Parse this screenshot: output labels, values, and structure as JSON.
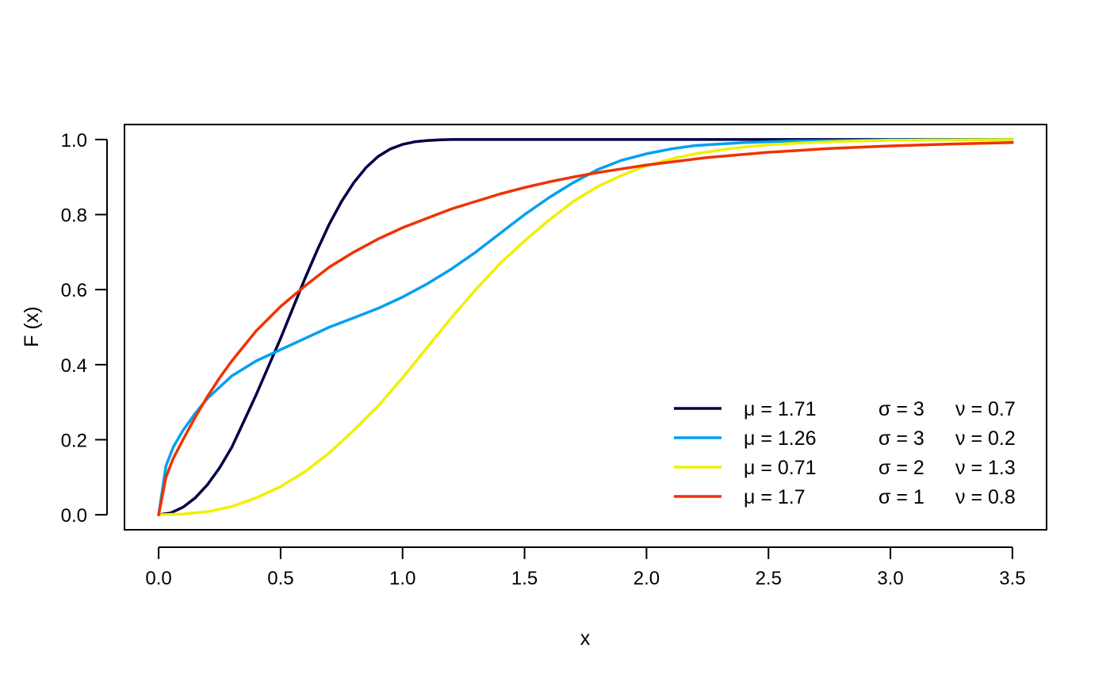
{
  "chart_data": {
    "type": "line",
    "title": "",
    "xlabel": "x",
    "ylabel": "F (x)",
    "xlim": [
      -0.14,
      3.64
    ],
    "ylim": [
      -0.04,
      1.04
    ],
    "xticks": [
      "0.0",
      "0.5",
      "1.0",
      "1.5",
      "2.0",
      "2.5",
      "3.0",
      "3.5"
    ],
    "yticks": [
      "0.0",
      "0.2",
      "0.4",
      "0.6",
      "0.8",
      "1.0"
    ],
    "grid": false,
    "legend_position": "bottom-right",
    "series": [
      {
        "legend": {
          "mu": "μ = 1.71",
          "sigma": "σ = 3",
          "nu": "ν = 0.7"
        },
        "color": "#000046",
        "x": [
          0.0,
          0.05,
          0.1,
          0.15,
          0.2,
          0.25,
          0.3,
          0.35,
          0.4,
          0.45,
          0.5,
          0.55,
          0.6,
          0.65,
          0.7,
          0.75,
          0.8,
          0.85,
          0.9,
          0.95,
          1.0,
          1.05,
          1.1,
          1.15,
          1.2,
          1.3,
          1.4,
          1.5,
          2.0,
          2.5,
          3.0,
          3.5
        ],
        "y": [
          0.0,
          0.005,
          0.02,
          0.045,
          0.08,
          0.125,
          0.18,
          0.25,
          0.32,
          0.395,
          0.47,
          0.55,
          0.63,
          0.705,
          0.775,
          0.835,
          0.885,
          0.925,
          0.955,
          0.975,
          0.987,
          0.994,
          0.997,
          0.999,
          1.0,
          1.0,
          1.0,
          1.0,
          1.0,
          1.0,
          1.0,
          1.0
        ]
      },
      {
        "legend": {
          "mu": "μ = 1.26",
          "sigma": "σ = 3",
          "nu": "ν = 0.2"
        },
        "color": "#00A0F0",
        "x": [
          0.0,
          0.03,
          0.06,
          0.1,
          0.15,
          0.2,
          0.3,
          0.4,
          0.5,
          0.6,
          0.7,
          0.8,
          0.9,
          1.0,
          1.1,
          1.2,
          1.3,
          1.4,
          1.5,
          1.6,
          1.7,
          1.8,
          1.9,
          2.0,
          2.1,
          2.2,
          2.4,
          2.6,
          3.0,
          3.5
        ],
        "y": [
          0.0,
          0.13,
          0.18,
          0.225,
          0.27,
          0.31,
          0.37,
          0.41,
          0.44,
          0.47,
          0.5,
          0.525,
          0.55,
          0.58,
          0.615,
          0.655,
          0.7,
          0.75,
          0.8,
          0.845,
          0.885,
          0.92,
          0.945,
          0.962,
          0.975,
          0.984,
          0.992,
          0.996,
          0.999,
          1.0
        ]
      },
      {
        "legend": {
          "mu": "μ = 0.71",
          "sigma": "σ = 2",
          "nu": "ν = 1.3"
        },
        "color": "#F0F000",
        "x": [
          0.0,
          0.1,
          0.2,
          0.3,
          0.4,
          0.5,
          0.6,
          0.7,
          0.8,
          0.9,
          1.0,
          1.1,
          1.2,
          1.3,
          1.4,
          1.5,
          1.6,
          1.7,
          1.8,
          1.9,
          2.0,
          2.1,
          2.2,
          2.3,
          2.4,
          2.5,
          2.6,
          2.8,
          3.0,
          3.5
        ],
        "y": [
          0.0,
          0.002,
          0.008,
          0.022,
          0.045,
          0.075,
          0.115,
          0.165,
          0.225,
          0.29,
          0.365,
          0.445,
          0.525,
          0.6,
          0.67,
          0.73,
          0.785,
          0.835,
          0.875,
          0.905,
          0.93,
          0.948,
          0.962,
          0.972,
          0.98,
          0.986,
          0.99,
          0.995,
          0.998,
          1.0
        ]
      },
      {
        "legend": {
          "mu": "μ = 1.7",
          "sigma": "σ = 1",
          "nu": "ν = 0.8"
        },
        "color": "#F03200",
        "x": [
          0.0,
          0.03,
          0.06,
          0.1,
          0.15,
          0.2,
          0.25,
          0.3,
          0.4,
          0.5,
          0.6,
          0.7,
          0.8,
          0.9,
          1.0,
          1.1,
          1.2,
          1.3,
          1.4,
          1.5,
          1.6,
          1.7,
          1.8,
          1.9,
          2.0,
          2.25,
          2.5,
          2.75,
          3.0,
          3.25,
          3.5
        ],
        "y": [
          0.0,
          0.1,
          0.15,
          0.2,
          0.26,
          0.315,
          0.365,
          0.41,
          0.49,
          0.555,
          0.61,
          0.66,
          0.7,
          0.735,
          0.765,
          0.79,
          0.815,
          0.835,
          0.855,
          0.872,
          0.887,
          0.9,
          0.912,
          0.922,
          0.932,
          0.952,
          0.966,
          0.976,
          0.983,
          0.988,
          0.992
        ]
      }
    ]
  }
}
